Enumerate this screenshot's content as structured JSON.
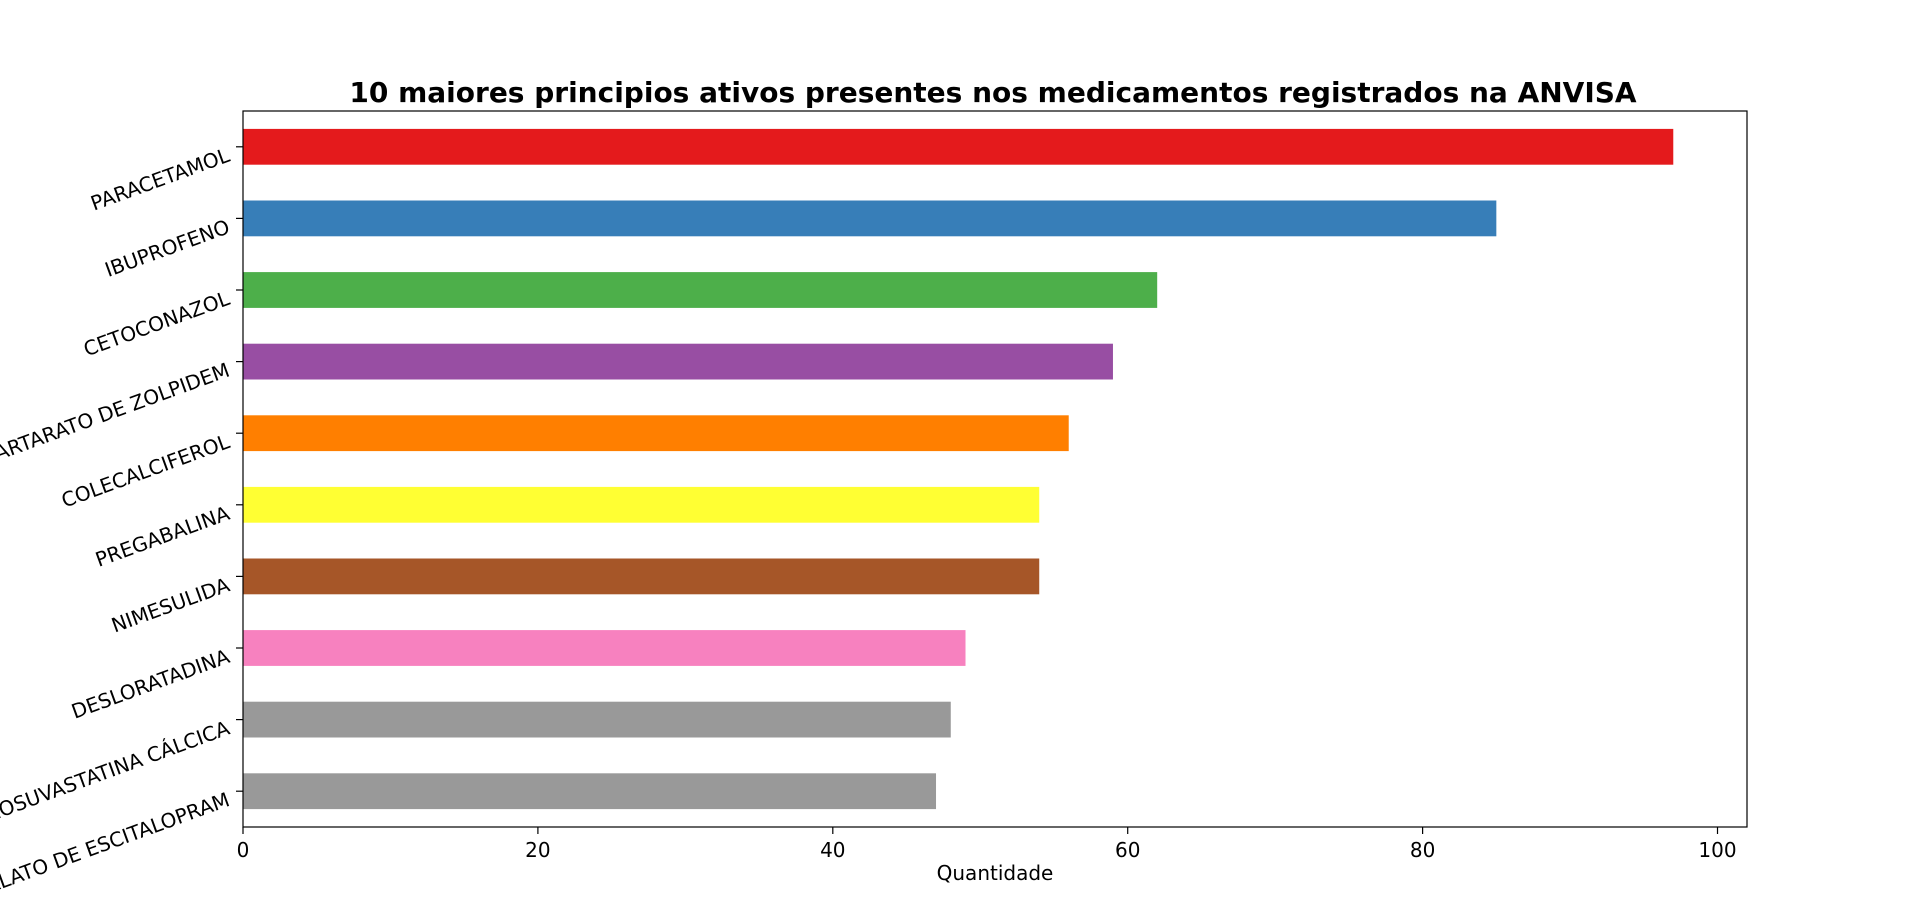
{
  "chart_data": {
    "type": "bar",
    "orientation": "horizontal",
    "title": "10 maiores principios ativos presentes nos medicamentos registrados na ANVISA",
    "xlabel": "Quantidade",
    "ylabel": "",
    "categories": [
      "PARACETAMOL",
      "IBUPROFENO",
      "CETOCONAZOL",
      "HEMITARTARATO DE ZOLPIDEM",
      "COLECALCIFEROL",
      "PREGABALINA",
      "NIMESULIDA",
      "DESLORATADINA",
      "ROSUVASTATINA CÁLCICA",
      "OXALATO DE ESCITALOPRAM"
    ],
    "values": [
      97,
      85,
      62,
      59,
      56,
      54,
      54,
      49,
      48,
      47
    ],
    "colors": [
      "#e41a1c",
      "#377eb8",
      "#4daf4a",
      "#984ea3",
      "#ff7f00",
      "#ffff33",
      "#a65628",
      "#f781bf",
      "#999999",
      "#999999"
    ],
    "xlim": [
      0,
      102
    ],
    "xticks": [
      0,
      20,
      40,
      60,
      80,
      100
    ],
    "xtick_labels": [
      "0",
      "20",
      "40",
      "60",
      "80",
      "100"
    ],
    "grid": false,
    "legend": "none"
  }
}
